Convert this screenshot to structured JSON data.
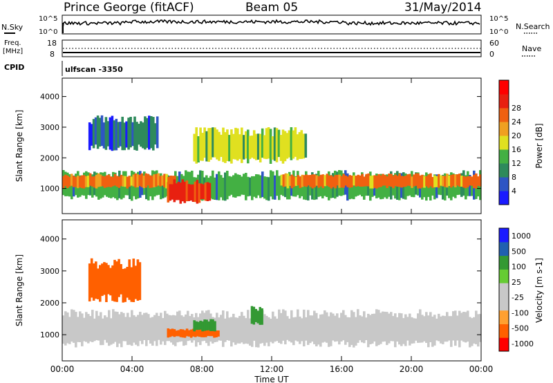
{
  "header": {
    "station": "Prince George (fitACF)",
    "beam": "Beam 05",
    "date": "31/May/2014"
  },
  "strip": {
    "nsky_label": "N.Sky",
    "nsky_scale": [
      "10^5",
      "10^0"
    ],
    "nsearch_label": "N.Search",
    "nsearch_scale": [
      "10^5",
      "10^0"
    ],
    "freq_label": [
      "Freq.",
      "[MHz]"
    ],
    "freq_scale": [
      "18",
      "8"
    ],
    "nave_label": "Nave",
    "nave_scale": [
      "60",
      "0"
    ],
    "cpid_label": "CPID",
    "cpid_value": "ulfscan -3350"
  },
  "colors": {
    "power": [
      "#1a1aff",
      "#2e55c4",
      "#2e8a5c",
      "#43b043",
      "#e0e020",
      "#f0a020",
      "#f06010",
      "#e82010",
      "#ff0000"
    ],
    "velocity": [
      "#ff0000",
      "#ff6000",
      "#ffa030",
      "#c8c8c8",
      "#c8c8c8",
      "#66cc33",
      "#339933",
      "#2060b0",
      "#1a1aff"
    ]
  },
  "chart_data": [
    {
      "type": "heatmap",
      "title": "",
      "xlabel": "",
      "ylabel": "Slant Range [km]",
      "colorbar_label": "Power [dB]",
      "colorbar_ticks": [
        "4",
        "8",
        "12",
        "16",
        "20",
        "24",
        "28"
      ],
      "x_ticks": [
        "00:00",
        "04:00",
        "08:00",
        "12:00",
        "16:00",
        "20:00",
        "00:00"
      ],
      "y_ticks": [
        "1000",
        "2000",
        "3000",
        "4000"
      ],
      "xlim_hours": [
        0,
        24
      ],
      "ylim_km": [
        180,
        4600
      ],
      "bands": [
        {
          "start_hour": 0.0,
          "end_hour": 24.0,
          "range_km": [
            600,
            1600
          ],
          "level_db": 10
        },
        {
          "start_hour": 0.0,
          "end_hour": 6.5,
          "range_km": [
            1000,
            1500
          ],
          "level_db": 24
        },
        {
          "start_hour": 6.0,
          "end_hour": 8.5,
          "range_km": [
            500,
            1300
          ],
          "level_db": 28
        },
        {
          "start_hour": 7.5,
          "end_hour": 14.0,
          "range_km": [
            1800,
            3000
          ],
          "level_db": 16
        },
        {
          "start_hour": 12.5,
          "end_hour": 24.0,
          "range_km": [
            1000,
            1500
          ],
          "level_db": 22
        },
        {
          "start_hour": 1.5,
          "end_hour": 5.5,
          "range_km": [
            2200,
            3400
          ],
          "level_db": 8
        }
      ]
    },
    {
      "type": "heatmap",
      "title": "",
      "xlabel": "Time UT",
      "ylabel": "Slant Range [km]",
      "colorbar_label": "Velocity [m s-1]",
      "colorbar_ticks": [
        "1000",
        "500",
        "100",
        "25",
        "-25",
        "-100",
        "-500",
        "-1000"
      ],
      "x_ticks": [
        "00:00",
        "04:00",
        "08:00",
        "12:00",
        "16:00",
        "20:00",
        "00:00"
      ],
      "y_ticks": [
        "1000",
        "2000",
        "3000",
        "4000"
      ],
      "xlim_hours": [
        0,
        24
      ],
      "ylim_km": [
        180,
        4600
      ],
      "bands": [
        {
          "start_hour": 0.0,
          "end_hour": 24.0,
          "range_km": [
            600,
            1800
          ],
          "velocity_ms": 0
        },
        {
          "start_hour": 6.0,
          "end_hour": 9.0,
          "range_km": [
            900,
            1200
          ],
          "velocity_ms": -300
        },
        {
          "start_hour": 7.5,
          "end_hour": 8.8,
          "range_km": [
            1100,
            1500
          ],
          "velocity_ms": 600
        },
        {
          "start_hour": 10.8,
          "end_hour": 11.5,
          "range_km": [
            1300,
            1900
          ],
          "velocity_ms": 800
        },
        {
          "start_hour": 1.5,
          "end_hour": 4.5,
          "range_km": [
            2000,
            3400
          ],
          "velocity_ms": -150
        }
      ]
    }
  ]
}
